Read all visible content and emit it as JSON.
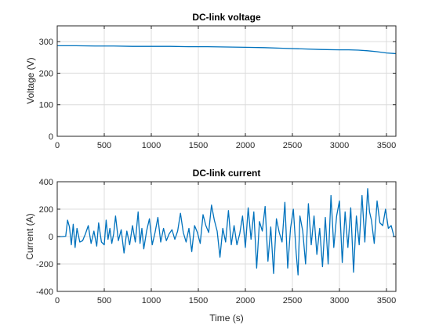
{
  "colors": {
    "series": "#0072BD",
    "grid": "#DCDCDC",
    "axes": "#262626",
    "background": "#FFFFFF"
  },
  "chart_data": [
    {
      "type": "line",
      "title": "DC-link voltage",
      "xlabel": "",
      "ylabel": "Voltage (V)",
      "xlim": [
        0,
        3600
      ],
      "ylim": [
        0,
        350
      ],
      "xticks": [
        0,
        500,
        1000,
        1500,
        2000,
        2500,
        3000,
        3500
      ],
      "yticks": [
        0,
        100,
        200,
        300
      ],
      "grid": true,
      "series": [
        {
          "x": [
            0,
            200,
            400,
            600,
            800,
            1000,
            1200,
            1400,
            1600,
            1800,
            2000,
            2200,
            2400,
            2600,
            2800,
            3000,
            3100,
            3200,
            3300,
            3400,
            3500,
            3600
          ],
          "y": [
            287,
            287,
            286,
            286,
            285,
            285,
            285,
            284,
            284,
            283,
            282,
            281,
            279,
            277,
            275,
            274,
            274,
            273,
            271,
            268,
            264,
            262
          ]
        }
      ]
    },
    {
      "type": "line",
      "title": "DC-link current",
      "xlabel": "Time (s)",
      "ylabel": "Current (A)",
      "xlim": [
        0,
        3600
      ],
      "ylim": [
        -400,
        400
      ],
      "xticks": [
        0,
        500,
        1000,
        1500,
        2000,
        2500,
        3000,
        3500
      ],
      "yticks": [
        -400,
        -200,
        0,
        200,
        400
      ],
      "grid": true,
      "series": [
        {
          "x": [
            0,
            50,
            90,
            110,
            130,
            150,
            170,
            190,
            210,
            240,
            270,
            300,
            330,
            360,
            390,
            420,
            440,
            470,
            500,
            520,
            540,
            560,
            580,
            600,
            620,
            650,
            680,
            710,
            740,
            770,
            800,
            830,
            860,
            880,
            900,
            920,
            950,
            980,
            1010,
            1040,
            1070,
            1100,
            1130,
            1160,
            1190,
            1220,
            1250,
            1280,
            1310,
            1340,
            1370,
            1400,
            1430,
            1460,
            1490,
            1520,
            1550,
            1580,
            1610,
            1640,
            1670,
            1700,
            1730,
            1760,
            1790,
            1820,
            1850,
            1880,
            1910,
            1940,
            1970,
            2000,
            2030,
            2060,
            2090,
            2120,
            2150,
            2180,
            2210,
            2240,
            2270,
            2300,
            2330,
            2360,
            2390,
            2420,
            2450,
            2480,
            2510,
            2540,
            2560,
            2580,
            2610,
            2640,
            2670,
            2700,
            2730,
            2760,
            2790,
            2820,
            2850,
            2880,
            2910,
            2940,
            2970,
            3000,
            3030,
            3060,
            3090,
            3120,
            3150,
            3180,
            3210,
            3240,
            3270,
            3300,
            3320,
            3340,
            3370,
            3400,
            3430,
            3460,
            3490,
            3520,
            3550,
            3580,
            3600
          ],
          "y": [
            0,
            0,
            2,
            120,
            70,
            -60,
            90,
            -80,
            60,
            -40,
            -30,
            20,
            80,
            -50,
            40,
            -70,
            100,
            -40,
            -60,
            120,
            -20,
            60,
            -50,
            20,
            150,
            -30,
            50,
            -120,
            40,
            -60,
            80,
            -40,
            180,
            -50,
            60,
            -90,
            40,
            130,
            -60,
            30,
            140,
            -40,
            60,
            -30,
            20,
            50,
            -20,
            40,
            170,
            30,
            -40,
            60,
            -110,
            80,
            30,
            -50,
            160,
            80,
            30,
            230,
            120,
            40,
            -150,
            60,
            -40,
            190,
            -60,
            80,
            -60,
            20,
            150,
            -80,
            210,
            -20,
            180,
            -230,
            110,
            40,
            220,
            -180,
            70,
            -270,
            130,
            30,
            -40,
            250,
            -230,
            60,
            200,
            -120,
            -280,
            150,
            40,
            -200,
            240,
            -60,
            150,
            -130,
            60,
            -220,
            140,
            -200,
            300,
            -80,
            150,
            260,
            -190,
            180,
            -80,
            210,
            -260,
            150,
            -60,
            300,
            -40,
            350,
            180,
            120,
            -50,
            260,
            100,
            80,
            200,
            60,
            80,
            0,
            0
          ]
        }
      ]
    }
  ]
}
